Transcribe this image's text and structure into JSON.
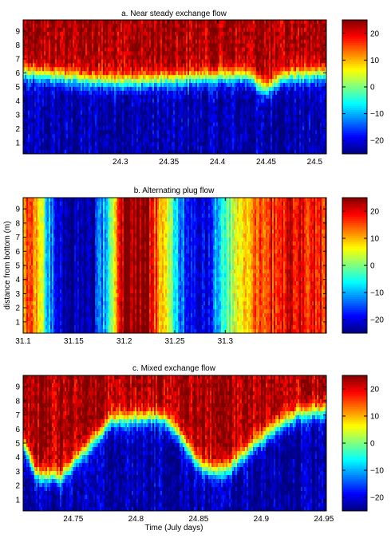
{
  "chart_data": [
    {
      "type": "heatmap",
      "title": "a. Near steady exchange flow",
      "xlabel": "",
      "ylabel": "",
      "xlim": [
        24.2,
        24.512
      ],
      "ylim": [
        0.2,
        9.8
      ],
      "x_ticks": [
        24.3,
        24.35,
        24.4,
        24.45,
        24.5
      ],
      "x_tick_labels": [
        "24.3",
        "24.35",
        "24.4",
        "24.45",
        "24.5"
      ],
      "y_ticks": [
        1,
        2,
        3,
        4,
        5,
        6,
        7,
        8,
        9
      ],
      "y_tick_labels": [
        "1",
        "2",
        "3",
        "4",
        "5",
        "6",
        "7",
        "8",
        "9"
      ],
      "pattern": "exchange",
      "interface_depth": [
        [
          24.2,
          6.0
        ],
        [
          24.25,
          5.6
        ],
        [
          24.3,
          5.3
        ],
        [
          24.35,
          5.5
        ],
        [
          24.4,
          5.7
        ],
        [
          24.43,
          5.8
        ],
        [
          24.45,
          4.8
        ],
        [
          24.47,
          5.7
        ],
        [
          24.5,
          5.9
        ],
        [
          24.512,
          5.9
        ]
      ],
      "colorbar": {
        "clim": [
          -25,
          25
        ],
        "ticks": [
          20,
          10,
          0,
          -10,
          -20
        ],
        "tick_labels": [
          "20",
          "10",
          "0",
          "−10",
          "−20"
        ],
        "colormap": "jet"
      }
    },
    {
      "type": "heatmap",
      "title": "b. Alternating plug flow",
      "xlabel": "",
      "ylabel": "distance from bottom (m)",
      "xlim": [
        31.1,
        31.4
      ],
      "ylim": [
        0.2,
        9.8
      ],
      "x_ticks": [
        31.1,
        31.15,
        31.2,
        31.25,
        31.3
      ],
      "x_tick_labels": [
        "31.1",
        "31.15",
        "31.2",
        "31.25",
        "31.3"
      ],
      "y_ticks": [
        1,
        2,
        3,
        4,
        5,
        6,
        7,
        8,
        9
      ],
      "y_tick_labels": [
        "1",
        "2",
        "3",
        "4",
        "5",
        "6",
        "7",
        "8",
        "9"
      ],
      "pattern": "plug",
      "velocity_timeline": [
        [
          31.1,
          15
        ],
        [
          31.115,
          12
        ],
        [
          31.125,
          -10
        ],
        [
          31.14,
          -25
        ],
        [
          31.17,
          -22
        ],
        [
          31.18,
          -10
        ],
        [
          31.19,
          5
        ],
        [
          31.2,
          25
        ],
        [
          31.22,
          25
        ],
        [
          31.23,
          18
        ],
        [
          31.24,
          5
        ],
        [
          31.26,
          -15
        ],
        [
          31.28,
          -20
        ],
        [
          31.3,
          -5
        ],
        [
          31.31,
          5
        ],
        [
          31.33,
          15
        ],
        [
          31.36,
          20
        ],
        [
          31.4,
          18
        ]
      ],
      "colorbar": {
        "clim": [
          -25,
          25
        ],
        "ticks": [
          20,
          10,
          0,
          -10,
          -20
        ],
        "tick_labels": [
          "20",
          "10",
          "0",
          "−10",
          "−20"
        ],
        "colormap": "jet"
      }
    },
    {
      "type": "heatmap",
      "title": "c. Mixed exchange flow",
      "xlabel": "Time (July days)",
      "ylabel": "",
      "xlim": [
        24.71,
        24.952
      ],
      "ylim": [
        0.2,
        9.8
      ],
      "x_ticks": [
        24.75,
        24.8,
        24.85,
        24.9,
        24.95
      ],
      "x_tick_labels": [
        "24.75",
        "24.8",
        "24.85",
        "24.9",
        "24.95"
      ],
      "y_ticks": [
        1,
        2,
        3,
        4,
        5,
        6,
        7,
        8,
        9
      ],
      "y_tick_labels": [
        "1",
        "2",
        "3",
        "4",
        "5",
        "6",
        "7",
        "8",
        "9"
      ],
      "pattern": "exchange",
      "interface_depth": [
        [
          24.71,
          5.0
        ],
        [
          24.72,
          2.8
        ],
        [
          24.74,
          2.5
        ],
        [
          24.76,
          4.5
        ],
        [
          24.78,
          6.5
        ],
        [
          24.8,
          6.7
        ],
        [
          24.82,
          6.8
        ],
        [
          24.835,
          5.5
        ],
        [
          24.85,
          3.5
        ],
        [
          24.86,
          3.0
        ],
        [
          24.875,
          3.2
        ],
        [
          24.89,
          4.5
        ],
        [
          24.91,
          6.0
        ],
        [
          24.93,
          7.0
        ],
        [
          24.952,
          7.3
        ]
      ],
      "colorbar": {
        "clim": [
          -25,
          25
        ],
        "ticks": [
          20,
          10,
          0,
          -10,
          -20
        ],
        "tick_labels": [
          "20",
          "10",
          "0",
          "−10",
          "−20"
        ],
        "colormap": "jet"
      }
    }
  ]
}
